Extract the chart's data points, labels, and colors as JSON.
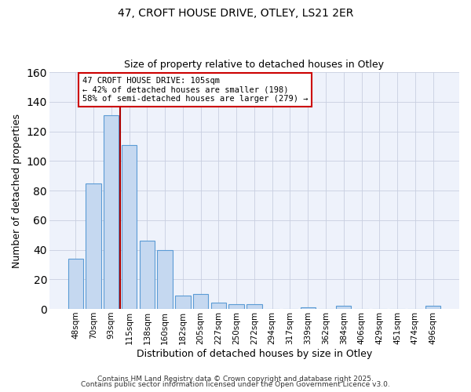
{
  "title": "47, CROFT HOUSE DRIVE, OTLEY, LS21 2ER",
  "subtitle": "Size of property relative to detached houses in Otley",
  "xlabel": "Distribution of detached houses by size in Otley",
  "ylabel": "Number of detached properties",
  "bar_labels": [
    "48sqm",
    "70sqm",
    "93sqm",
    "115sqm",
    "138sqm",
    "160sqm",
    "182sqm",
    "205sqm",
    "227sqm",
    "250sqm",
    "272sqm",
    "294sqm",
    "317sqm",
    "339sqm",
    "362sqm",
    "384sqm",
    "406sqm",
    "429sqm",
    "451sqm",
    "474sqm",
    "496sqm"
  ],
  "bar_values": [
    34,
    85,
    131,
    111,
    46,
    40,
    9,
    10,
    4,
    3,
    3,
    0,
    0,
    1,
    0,
    2,
    0,
    0,
    0,
    0,
    2
  ],
  "bar_color": "#c5d8f0",
  "bar_edge_color": "#5b9bd5",
  "background_color": "#eef2fb",
  "grid_color": "#c8cfe0",
  "vline_x_index": 2.5,
  "vline_color": "#aa0000",
  "annotation_text": "47 CROFT HOUSE DRIVE: 105sqm\n← 42% of detached houses are smaller (198)\n58% of semi-detached houses are larger (279) →",
  "annotation_box_color": "#ffffff",
  "annotation_box_edge": "#cc0000",
  "ylim": [
    0,
    160
  ],
  "yticks": [
    0,
    20,
    40,
    60,
    80,
    100,
    120,
    140,
    160
  ],
  "footer_line1": "Contains HM Land Registry data © Crown copyright and database right 2025.",
  "footer_line2": "Contains public sector information licensed under the Open Government Licence v3.0."
}
